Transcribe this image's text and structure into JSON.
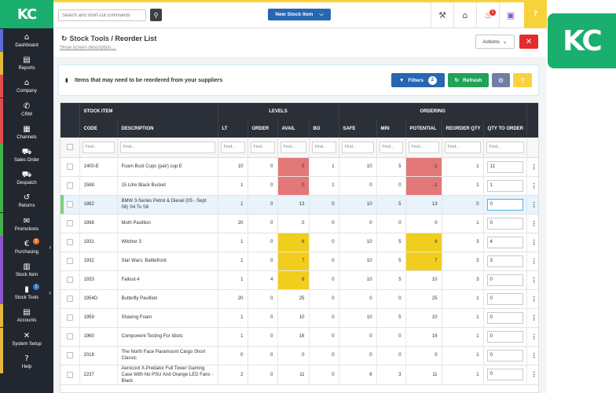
{
  "brand": {
    "logo_text": "KC",
    "logo_color": "#1aae6f"
  },
  "sidebar": {
    "items": [
      {
        "label": "Dashboard",
        "icon": "dashboard-icon",
        "glyph": "⌂",
        "strip": "#5b6bd6"
      },
      {
        "label": "Reports",
        "icon": "reports-icon",
        "glyph": "▤",
        "strip": "#e2b93b"
      },
      {
        "label": "Company",
        "icon": "company-icon",
        "glyph": "⌂",
        "strip": "#e04d4d"
      },
      {
        "label": "CRM",
        "icon": "phone-icon",
        "glyph": "✆",
        "strip": "#e04d4d"
      },
      {
        "label": "Channels",
        "icon": "channels-icon",
        "glyph": "▦",
        "strip": "#e04d4d"
      },
      {
        "label": "Sales Order",
        "icon": "cart-icon",
        "glyph": "⛟",
        "strip": "#43b04a"
      },
      {
        "label": "Despatch",
        "icon": "truck-icon",
        "glyph": "⛟",
        "strip": "#43b04a"
      },
      {
        "label": "Returns",
        "icon": "returns-icon",
        "glyph": "↺",
        "strip": "#43b04a"
      },
      {
        "label": "Promotions",
        "icon": "megaphone-icon",
        "glyph": "✉",
        "strip": "#43b04a"
      },
      {
        "label": "Purchasing",
        "icon": "purchasing-icon",
        "glyph": "€",
        "strip": "#8a56c9",
        "badge": "2",
        "badge_color": "#e8752b",
        "chevron": true
      },
      {
        "label": "Stock Item",
        "icon": "stock-item-icon",
        "glyph": "▥",
        "strip": "#8a56c9"
      },
      {
        "label": "Stock Tools",
        "icon": "stock-tools-icon",
        "glyph": "▮",
        "strip": "#8a56c9",
        "badge": "1",
        "badge_color": "#2f7fd6",
        "chevron": true
      },
      {
        "label": "Accounts",
        "icon": "accounts-icon",
        "glyph": "▤",
        "strip": "#e2b93b"
      },
      {
        "label": "System Setup",
        "icon": "wrench-icon",
        "glyph": "✕",
        "strip": "#e2b93b"
      },
      {
        "label": "Help",
        "icon": "help-icon",
        "glyph": "?",
        "strip": "#e2b93b"
      }
    ]
  },
  "topbar": {
    "search_placeholder": "Search and short-cut commands",
    "new_stock_label": "New Stock Item",
    "notification_count": "1"
  },
  "header": {
    "crumb_parent": "Stock Tools",
    "crumb_sep": " / ",
    "title": "Reorder List",
    "show_desc": "Show screen description....",
    "actions_label": "Actions"
  },
  "panel": {
    "text": "Items that may need to be reordered from your suppliers",
    "filters_label": "Filters",
    "filters_count": "2",
    "refresh_label": "Refresh"
  },
  "table": {
    "groups": [
      "STOCK ITEM",
      "LEVELS",
      "ORDERING"
    ],
    "columns": [
      "CODE",
      "DESCRIPTION",
      "LT",
      "ORDER",
      "AVAIL",
      "BO",
      "SAFE",
      "MIN",
      "POTENTIAL",
      "REORDER QTY",
      "QTY TO ORDER"
    ],
    "filter_placeholder": "Find...",
    "rows": [
      {
        "code": "1400-E",
        "desc": "Foam Bust Cups (pair) cup E",
        "lt": "10",
        "order": "0",
        "avail": "0",
        "bo": "1",
        "safe": "10",
        "min": "5",
        "potential": "-1",
        "reorder": "1",
        "qty": "11",
        "avail_flag": "hot",
        "pot_flag": "hot"
      },
      {
        "code": "1588",
        "desc": "15 Litre Black Bucket",
        "lt": "1",
        "order": "0",
        "avail": "0",
        "bo": "1",
        "safe": "0",
        "min": "0",
        "potential": "-1",
        "reorder": "1",
        "qty": "1",
        "avail_flag": "hot",
        "pot_flag": "hot"
      },
      {
        "code": "1882",
        "desc": "BMW 3-Series Petrol & Diesel (05 - Sept 08) S4 To S8",
        "lt": "1",
        "order": "0",
        "avail": "13",
        "bo": "0",
        "safe": "10",
        "min": "5",
        "potential": "13",
        "reorder": "0",
        "qty": "0",
        "selected": true
      },
      {
        "code": "1898",
        "desc": "Moth Pavillion",
        "lt": "20",
        "order": "0",
        "avail": "0",
        "bo": "0",
        "safe": "0",
        "min": "0",
        "potential": "0",
        "reorder": "1",
        "qty": "0"
      },
      {
        "code": "1931",
        "desc": "Witcher 3",
        "lt": "1",
        "order": "0",
        "avail": "6",
        "bo": "0",
        "safe": "10",
        "min": "5",
        "potential": "6",
        "reorder": "3",
        "qty": "4",
        "avail_flag": "warn",
        "pot_flag": "warn"
      },
      {
        "code": "1932",
        "desc": "Star Wars: Battlefront",
        "lt": "1",
        "order": "0",
        "avail": "7",
        "bo": "0",
        "safe": "10",
        "min": "5",
        "potential": "7",
        "reorder": "3",
        "qty": "3",
        "avail_flag": "warn",
        "pot_flag": "warn"
      },
      {
        "code": "1933",
        "desc": "Fallout 4",
        "lt": "1",
        "order": "4",
        "avail": "6",
        "bo": "0",
        "safe": "10",
        "min": "5",
        "potential": "10",
        "reorder": "3",
        "qty": "0",
        "avail_flag": "warn"
      },
      {
        "code": "1954D",
        "desc": "Butterfly Pavillion",
        "lt": "20",
        "order": "0",
        "avail": "25",
        "bo": "0",
        "safe": "0",
        "min": "0",
        "potential": "25",
        "reorder": "1",
        "qty": "0"
      },
      {
        "code": "1959",
        "desc": "Shaving Foam",
        "lt": "1",
        "order": "0",
        "avail": "10",
        "bo": "0",
        "safe": "10",
        "min": "5",
        "potential": "10",
        "reorder": "1",
        "qty": "0"
      },
      {
        "code": "1960",
        "desc": "Component Testing For Idiots",
        "lt": "1",
        "order": "0",
        "avail": "16",
        "bo": "0",
        "safe": "0",
        "min": "0",
        "potential": "16",
        "reorder": "1",
        "qty": "0"
      },
      {
        "code": "2018",
        "desc": "The North Face Paramount Cargo Short Classic",
        "lt": "0",
        "order": "0",
        "avail": "0",
        "bo": "0",
        "safe": "0",
        "min": "0",
        "potential": "0",
        "reorder": "1",
        "qty": "0"
      },
      {
        "code": "2237",
        "desc": "Aerocool X-Predator Full Tower Gaming Case With No PSU And Orange LED Fans - Black",
        "lt": "2",
        "order": "0",
        "avail": "11",
        "bo": "0",
        "safe": "6",
        "min": "3",
        "potential": "11",
        "reorder": "1",
        "qty": "0"
      }
    ]
  },
  "colors": {
    "sidebar": "#22262e",
    "accent_yellow": "#f7d23c",
    "primary_blue": "#2666b3",
    "danger_red": "#e52b2b",
    "hot_cell": "#e27878",
    "warn_cell": "#f1cd1e",
    "refresh_green": "#22a257"
  }
}
